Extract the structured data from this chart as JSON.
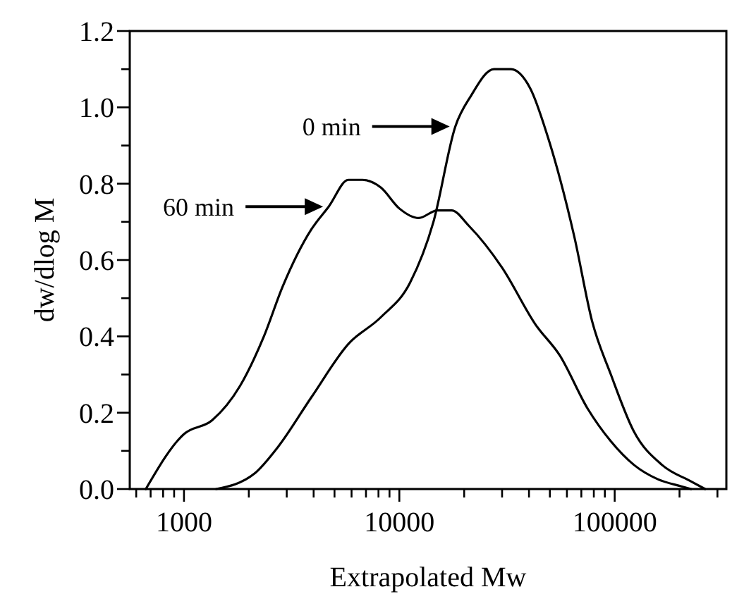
{
  "chart_data": {
    "type": "line",
    "xlabel": "Extrapolated Mw",
    "ylabel": "dw/dlog M",
    "log": "x",
    "xlim": [
      560,
      330000
    ],
    "ylim": [
      0,
      1.2
    ],
    "xticks": [
      {
        "value": 600,
        "label": null
      },
      {
        "value": 700,
        "label": null
      },
      {
        "value": 800,
        "label": null
      },
      {
        "value": 900,
        "label": null
      },
      1000,
      {
        "value": 2000,
        "label": null
      },
      {
        "value": 3000,
        "label": null
      },
      {
        "value": 4000,
        "label": null
      },
      {
        "value": 5000,
        "label": null
      },
      {
        "value": 6000,
        "label": null
      },
      {
        "value": 7000,
        "label": null
      },
      {
        "value": 8000,
        "label": null
      },
      {
        "value": 9000,
        "label": null
      },
      10000,
      {
        "value": 20000,
        "label": null
      },
      {
        "value": 30000,
        "label": null
      },
      {
        "value": 40000,
        "label": null
      },
      {
        "value": 50000,
        "label": null
      },
      {
        "value": 60000,
        "label": null
      },
      {
        "value": 70000,
        "label": null
      },
      {
        "value": 80000,
        "label": null
      },
      {
        "value": 90000,
        "label": null
      },
      100000,
      {
        "value": 200000,
        "label": null
      },
      {
        "value": 300000,
        "label": null
      }
    ],
    "yticks": [
      {
        "value": 0,
        "label": "0.0"
      },
      {
        "value": 0.1,
        "label": null
      },
      0.2,
      {
        "value": 0.3,
        "label": null
      },
      0.4,
      {
        "value": 0.5,
        "label": null
      },
      0.6,
      {
        "value": 0.7,
        "label": null
      },
      0.8,
      {
        "value": 0.9,
        "label": null
      },
      {
        "value": 1,
        "label": "1.0"
      },
      {
        "value": 1.1,
        "label": null
      },
      1.2
    ],
    "grid": false,
    "legend": "top left",
    "marker": "none",
    "line_style": "solid",
    "series": [
      {
        "name": "0 min",
        "color": "#000000",
        "x": [
          1410,
          2120,
          2730,
          3900,
          5800,
          8200,
          11200,
          14400,
          18200,
          21500,
          27500,
          33000,
          40500,
          49700,
          65000,
          78500,
          96000,
          123000,
          166000,
          226000,
          263000
        ],
        "values": [
          0,
          0.04,
          0.11,
          0.24,
          0.38,
          0.45,
          0.54,
          0.7,
          0.95,
          1.03,
          1.1,
          1.1,
          1.05,
          0.91,
          0.66,
          0.44,
          0.3,
          0.15,
          0.063,
          0.02,
          0
        ]
      },
      {
        "name": "60 min",
        "color": "#000000",
        "x": [
          665,
          1000,
          1350,
          1820,
          2350,
          2870,
          3900,
          4700,
          5800,
          6750,
          8200,
          10000,
          12300,
          15000,
          17500,
          21000,
          30000,
          43000,
          55600,
          75000,
          96000,
          123000,
          158000,
          204000,
          226000
        ],
        "values": [
          0,
          0.144,
          0.18,
          0.27,
          0.4,
          0.53,
          0.68,
          0.74,
          0.81,
          0.81,
          0.79,
          0.735,
          0.71,
          0.73,
          0.73,
          0.69,
          0.58,
          0.43,
          0.35,
          0.21,
          0.125,
          0.063,
          0.026,
          0.007,
          0
        ]
      }
    ]
  }
}
